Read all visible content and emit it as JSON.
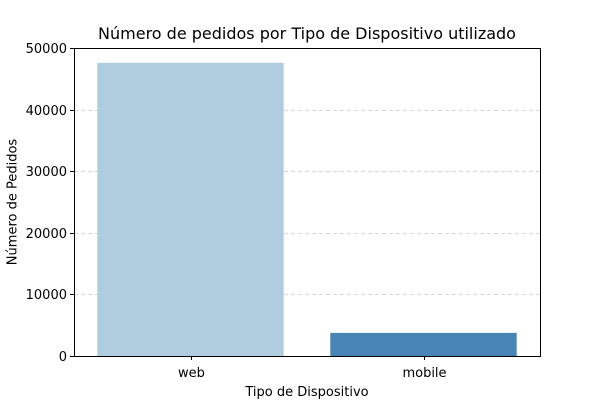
{
  "chart_data": {
    "type": "bar",
    "title": "Número de pedidos por Tipo de Dispositivo utilizado",
    "xlabel": "Tipo de Dispositivo",
    "ylabel": "Número de Pedidos",
    "categories": [
      "web",
      "mobile"
    ],
    "values": [
      47600,
      3750
    ],
    "colors": [
      "#b0cde0",
      "#4884b4"
    ],
    "ylim": [
      0,
      50000
    ],
    "yticks": [
      0,
      10000,
      20000,
      30000,
      40000,
      50000
    ],
    "ytick_labels": [
      "0",
      "10000",
      "20000",
      "30000",
      "40000",
      "50000"
    ],
    "grid": "y-dashed",
    "legend": "none"
  }
}
